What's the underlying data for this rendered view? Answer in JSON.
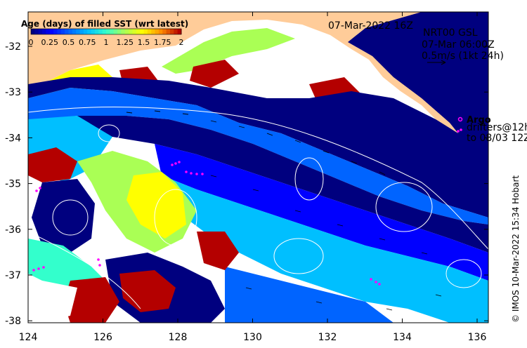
{
  "legend": {
    "title": "Age (days) of filled SST (wrt latest)",
    "tick_labels": [
      "0",
      "0.25",
      "0.5",
      "0.75",
      "1",
      "1.25",
      "1.5",
      "1.75",
      "2"
    ],
    "colors": [
      "#00007f",
      "#0000ff",
      "#0064ff",
      "#00bfff",
      "#33ffcc",
      "#aaff55",
      "#ffff00",
      "#ff8c00",
      "#b40000"
    ]
  },
  "header": {
    "date": "07-Mar-2022 16Z",
    "product": "NRT00 GSL",
    "current_time": "07-Mar 06:00Z",
    "vector_scale": "0.5m/s (1kt 24h)"
  },
  "argo": {
    "label": "Argo",
    "drifters_line1": "drifters@12h",
    "drifters_line2": "to 08/03 12Z"
  },
  "credit": "© IMOS 10-Mar-2022 15:34 Hobart",
  "map": {
    "x_ticks": [
      "124",
      "126",
      "128",
      "130",
      "132",
      "134",
      "136"
    ],
    "y_ticks": [
      "-32",
      "-33",
      "-34",
      "-35",
      "-36",
      "-37",
      "-38"
    ],
    "land_color": "#ffcc99",
    "nodata_color": "#ffffff",
    "argo_color": "#ff00ff"
  }
}
